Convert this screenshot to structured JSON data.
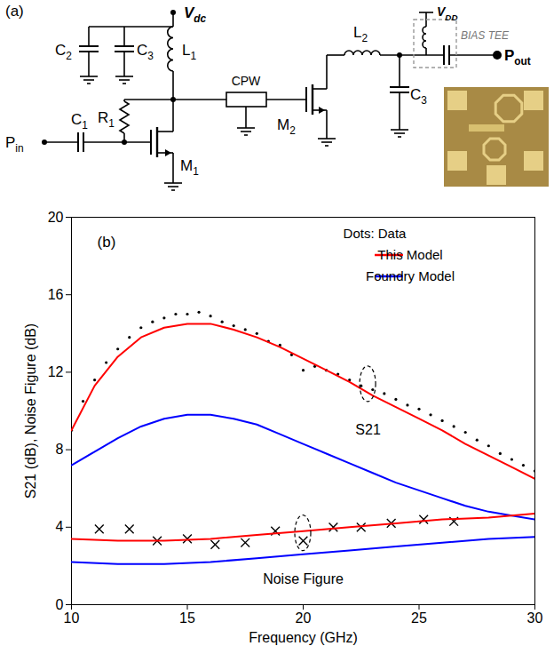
{
  "diagram": {
    "panel_label": "(a)",
    "labels": {
      "vdc": {
        "text": "V",
        "sub": "dc"
      },
      "c2": {
        "text": "C",
        "sub": "2"
      },
      "c3": {
        "text": "C",
        "sub": "3"
      },
      "l1": {
        "text": "L",
        "sub": "1"
      },
      "r1": {
        "text": "R",
        "sub": "1"
      },
      "c1": {
        "text": "C",
        "sub": "1"
      },
      "m1": {
        "text": "M",
        "sub": "1"
      },
      "pin": {
        "text": "P",
        "sub": "in"
      },
      "cpw": {
        "text": "CPW"
      },
      "m2": {
        "text": "M",
        "sub": "2"
      },
      "l2": {
        "text": "L",
        "sub": "2"
      },
      "c3b": {
        "text": "C",
        "sub": "3"
      },
      "vdd": {
        "text": "V",
        "sub": "DD"
      },
      "bias_tee": {
        "text": "BIAS TEE"
      },
      "pout": {
        "text": "P",
        "sub": "out"
      }
    }
  },
  "chart_data": {
    "type": "line",
    "panel_label": "(b)",
    "xlabel": "Frequency (GHz)",
    "ylabel": "S21 (dB), Noise Figure (dB)",
    "xlim": [
      10,
      30
    ],
    "xticks": [
      10,
      15,
      20,
      25,
      30
    ],
    "ylim": [
      0,
      20
    ],
    "yticks": [
      0,
      4,
      8,
      12,
      16,
      20
    ],
    "grid": false,
    "legend": "top-right",
    "annotations": [
      {
        "text": "S21",
        "x": 22.8,
        "y": 9.0
      },
      {
        "text": "Noise Figure",
        "x": 20,
        "y": 1.3
      }
    ],
    "series": [
      {
        "name": "Dots: Data",
        "group": "S21",
        "type": "scatter",
        "marker": "dot",
        "color": "#000000",
        "x": [
          10,
          10.5,
          11,
          11.5,
          12,
          12.5,
          13,
          13.5,
          14,
          14.5,
          15,
          15.5,
          16,
          16.5,
          17,
          17.5,
          18,
          18.5,
          19,
          19.5,
          20,
          20.5,
          21,
          21.5,
          22,
          22.5,
          23,
          23.5,
          24,
          24.5,
          25,
          25.5,
          26,
          26.5,
          27,
          27.5,
          28,
          28.5,
          29,
          29.5,
          30
        ],
        "values": [
          9.0,
          10.5,
          11.6,
          12.5,
          13.2,
          13.8,
          14.3,
          14.6,
          14.8,
          15.0,
          15.0,
          15.1,
          14.9,
          14.6,
          14.4,
          14.2,
          14.0,
          13.6,
          13.4,
          12.9,
          12.1,
          12.3,
          12.1,
          11.9,
          11.6,
          11.3,
          11.1,
          10.9,
          10.6,
          10.3,
          10.1,
          9.8,
          9.5,
          9.2,
          8.9,
          8.5,
          8.2,
          7.8,
          7.5,
          7.2,
          6.9
        ]
      },
      {
        "name": "This Model",
        "group": "S21",
        "type": "line",
        "line_style": "solid",
        "color": "#ff0000",
        "x": [
          10,
          11,
          12,
          13,
          14,
          15,
          16,
          17,
          18,
          19,
          20,
          21,
          22,
          23,
          24,
          25,
          26,
          27,
          28,
          29,
          30
        ],
        "values": [
          9.0,
          11.3,
          12.8,
          13.8,
          14.3,
          14.5,
          14.5,
          14.2,
          13.8,
          13.3,
          12.7,
          12.1,
          11.5,
          10.8,
          10.2,
          9.6,
          9.0,
          8.3,
          7.7,
          7.1,
          6.5
        ]
      },
      {
        "name": "Foundry Model",
        "group": "S21",
        "type": "line",
        "line_style": "solid",
        "color": "#0000ff",
        "x": [
          10,
          11,
          12,
          13,
          14,
          15,
          16,
          17,
          18,
          19,
          20,
          21,
          22,
          23,
          24,
          25,
          26,
          27,
          28,
          29,
          30
        ],
        "values": [
          7.2,
          7.9,
          8.6,
          9.2,
          9.6,
          9.8,
          9.8,
          9.6,
          9.3,
          8.8,
          8.3,
          7.8,
          7.3,
          6.8,
          6.3,
          5.9,
          5.5,
          5.1,
          4.8,
          4.6,
          4.4
        ]
      },
      {
        "name": "Dots: Data",
        "group": "Noise Figure",
        "type": "scatter",
        "marker": "x",
        "color": "#000000",
        "x": [
          11.2,
          12.5,
          13.7,
          15,
          16.2,
          17.5,
          18.8,
          20,
          21.3,
          22.5,
          23.8,
          25.2,
          26.5
        ],
        "values": [
          3.9,
          3.9,
          3.3,
          3.4,
          3.1,
          3.2,
          3.8,
          3.3,
          4.0,
          4.0,
          4.2,
          4.4,
          4.3
        ]
      },
      {
        "name": "This Model",
        "group": "Noise Figure",
        "type": "line",
        "line_style": "solid",
        "color": "#ff0000",
        "x": [
          10,
          12,
          14,
          16,
          18,
          20,
          22,
          24,
          26,
          28,
          30
        ],
        "values": [
          3.4,
          3.3,
          3.3,
          3.4,
          3.6,
          3.8,
          4.0,
          4.2,
          4.4,
          4.5,
          4.7
        ]
      },
      {
        "name": "Foundry Model",
        "group": "Noise Figure",
        "type": "line",
        "line_style": "solid",
        "color": "#0000ff",
        "x": [
          10,
          12,
          14,
          16,
          18,
          20,
          22,
          24,
          26,
          28,
          30
        ],
        "values": [
          2.2,
          2.1,
          2.1,
          2.2,
          2.4,
          2.6,
          2.8,
          3.0,
          3.2,
          3.4,
          3.5
        ]
      }
    ]
  }
}
